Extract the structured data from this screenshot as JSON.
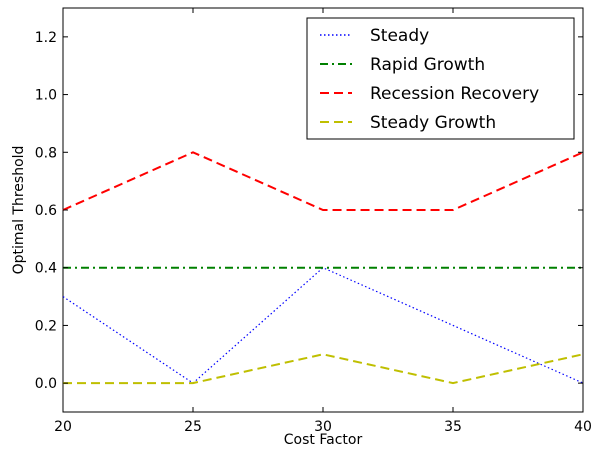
{
  "chart_data": {
    "type": "line",
    "title": "",
    "xlabel": "Cost Factor",
    "ylabel": "Optimal Threshold",
    "x": [
      20,
      25,
      30,
      35,
      40
    ],
    "xlim": [
      20,
      40
    ],
    "ylim": [
      -0.1,
      1.3
    ],
    "xticks": [
      "20",
      "25",
      "30",
      "35",
      "40"
    ],
    "yticks": [
      "0.0",
      "0.2",
      "0.4",
      "0.6",
      "0.8",
      "1.0",
      "1.2"
    ],
    "grid": false,
    "legend_position": "top-right",
    "series": [
      {
        "name": "Steady",
        "values": [
          0.3,
          0.0,
          0.4,
          0.2,
          0.0
        ],
        "color": "#0000ff",
        "style": "dotted"
      },
      {
        "name": "Rapid Growth",
        "values": [
          0.4,
          0.4,
          0.4,
          0.4,
          0.4
        ],
        "color": "#008000",
        "style": "dashdot"
      },
      {
        "name": "Recession Recovery",
        "values": [
          0.6,
          0.8,
          0.6,
          0.6,
          0.8
        ],
        "color": "#ff0000",
        "style": "dashed"
      },
      {
        "name": "Steady Growth",
        "values": [
          0.0,
          0.0,
          0.1,
          0.0,
          0.1
        ],
        "color": "#bfbf00",
        "style": "dashed"
      }
    ]
  }
}
